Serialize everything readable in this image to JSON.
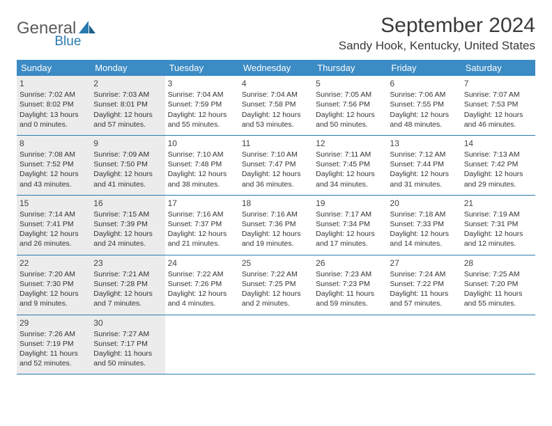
{
  "logo": {
    "general": "General",
    "blue": "Blue"
  },
  "title": "September 2024",
  "location": "Sandy Hook, Kentucky, United States",
  "colors": {
    "header_bg": "#3b8bc4",
    "header_text": "#ffffff",
    "shade_bg": "#ececec",
    "rule": "#2a7ab0",
    "logo_gray": "#5a5a5a",
    "logo_blue": "#2a7ab0"
  },
  "day_headers": [
    "Sunday",
    "Monday",
    "Tuesday",
    "Wednesday",
    "Thursday",
    "Friday",
    "Saturday"
  ],
  "weeks": [
    [
      {
        "n": "1",
        "shaded": true,
        "sr": "Sunrise: 7:02 AM",
        "ss": "Sunset: 8:02 PM",
        "dl": "Daylight: 13 hours and 0 minutes."
      },
      {
        "n": "2",
        "shaded": true,
        "sr": "Sunrise: 7:03 AM",
        "ss": "Sunset: 8:01 PM",
        "dl": "Daylight: 12 hours and 57 minutes."
      },
      {
        "n": "3",
        "shaded": false,
        "sr": "Sunrise: 7:04 AM",
        "ss": "Sunset: 7:59 PM",
        "dl": "Daylight: 12 hours and 55 minutes."
      },
      {
        "n": "4",
        "shaded": false,
        "sr": "Sunrise: 7:04 AM",
        "ss": "Sunset: 7:58 PM",
        "dl": "Daylight: 12 hours and 53 minutes."
      },
      {
        "n": "5",
        "shaded": false,
        "sr": "Sunrise: 7:05 AM",
        "ss": "Sunset: 7:56 PM",
        "dl": "Daylight: 12 hours and 50 minutes."
      },
      {
        "n": "6",
        "shaded": false,
        "sr": "Sunrise: 7:06 AM",
        "ss": "Sunset: 7:55 PM",
        "dl": "Daylight: 12 hours and 48 minutes."
      },
      {
        "n": "7",
        "shaded": false,
        "sr": "Sunrise: 7:07 AM",
        "ss": "Sunset: 7:53 PM",
        "dl": "Daylight: 12 hours and 46 minutes."
      }
    ],
    [
      {
        "n": "8",
        "shaded": true,
        "sr": "Sunrise: 7:08 AM",
        "ss": "Sunset: 7:52 PM",
        "dl": "Daylight: 12 hours and 43 minutes."
      },
      {
        "n": "9",
        "shaded": true,
        "sr": "Sunrise: 7:09 AM",
        "ss": "Sunset: 7:50 PM",
        "dl": "Daylight: 12 hours and 41 minutes."
      },
      {
        "n": "10",
        "shaded": false,
        "sr": "Sunrise: 7:10 AM",
        "ss": "Sunset: 7:48 PM",
        "dl": "Daylight: 12 hours and 38 minutes."
      },
      {
        "n": "11",
        "shaded": false,
        "sr": "Sunrise: 7:10 AM",
        "ss": "Sunset: 7:47 PM",
        "dl": "Daylight: 12 hours and 36 minutes."
      },
      {
        "n": "12",
        "shaded": false,
        "sr": "Sunrise: 7:11 AM",
        "ss": "Sunset: 7:45 PM",
        "dl": "Daylight: 12 hours and 34 minutes."
      },
      {
        "n": "13",
        "shaded": false,
        "sr": "Sunrise: 7:12 AM",
        "ss": "Sunset: 7:44 PM",
        "dl": "Daylight: 12 hours and 31 minutes."
      },
      {
        "n": "14",
        "shaded": false,
        "sr": "Sunrise: 7:13 AM",
        "ss": "Sunset: 7:42 PM",
        "dl": "Daylight: 12 hours and 29 minutes."
      }
    ],
    [
      {
        "n": "15",
        "shaded": true,
        "sr": "Sunrise: 7:14 AM",
        "ss": "Sunset: 7:41 PM",
        "dl": "Daylight: 12 hours and 26 minutes."
      },
      {
        "n": "16",
        "shaded": true,
        "sr": "Sunrise: 7:15 AM",
        "ss": "Sunset: 7:39 PM",
        "dl": "Daylight: 12 hours and 24 minutes."
      },
      {
        "n": "17",
        "shaded": false,
        "sr": "Sunrise: 7:16 AM",
        "ss": "Sunset: 7:37 PM",
        "dl": "Daylight: 12 hours and 21 minutes."
      },
      {
        "n": "18",
        "shaded": false,
        "sr": "Sunrise: 7:16 AM",
        "ss": "Sunset: 7:36 PM",
        "dl": "Daylight: 12 hours and 19 minutes."
      },
      {
        "n": "19",
        "shaded": false,
        "sr": "Sunrise: 7:17 AM",
        "ss": "Sunset: 7:34 PM",
        "dl": "Daylight: 12 hours and 17 minutes."
      },
      {
        "n": "20",
        "shaded": false,
        "sr": "Sunrise: 7:18 AM",
        "ss": "Sunset: 7:33 PM",
        "dl": "Daylight: 12 hours and 14 minutes."
      },
      {
        "n": "21",
        "shaded": false,
        "sr": "Sunrise: 7:19 AM",
        "ss": "Sunset: 7:31 PM",
        "dl": "Daylight: 12 hours and 12 minutes."
      }
    ],
    [
      {
        "n": "22",
        "shaded": true,
        "sr": "Sunrise: 7:20 AM",
        "ss": "Sunset: 7:30 PM",
        "dl": "Daylight: 12 hours and 9 minutes."
      },
      {
        "n": "23",
        "shaded": true,
        "sr": "Sunrise: 7:21 AM",
        "ss": "Sunset: 7:28 PM",
        "dl": "Daylight: 12 hours and 7 minutes."
      },
      {
        "n": "24",
        "shaded": false,
        "sr": "Sunrise: 7:22 AM",
        "ss": "Sunset: 7:26 PM",
        "dl": "Daylight: 12 hours and 4 minutes."
      },
      {
        "n": "25",
        "shaded": false,
        "sr": "Sunrise: 7:22 AM",
        "ss": "Sunset: 7:25 PM",
        "dl": "Daylight: 12 hours and 2 minutes."
      },
      {
        "n": "26",
        "shaded": false,
        "sr": "Sunrise: 7:23 AM",
        "ss": "Sunset: 7:23 PM",
        "dl": "Daylight: 11 hours and 59 minutes."
      },
      {
        "n": "27",
        "shaded": false,
        "sr": "Sunrise: 7:24 AM",
        "ss": "Sunset: 7:22 PM",
        "dl": "Daylight: 11 hours and 57 minutes."
      },
      {
        "n": "28",
        "shaded": false,
        "sr": "Sunrise: 7:25 AM",
        "ss": "Sunset: 7:20 PM",
        "dl": "Daylight: 11 hours and 55 minutes."
      }
    ],
    [
      {
        "n": "29",
        "shaded": true,
        "sr": "Sunrise: 7:26 AM",
        "ss": "Sunset: 7:19 PM",
        "dl": "Daylight: 11 hours and 52 minutes."
      },
      {
        "n": "30",
        "shaded": true,
        "sr": "Sunrise: 7:27 AM",
        "ss": "Sunset: 7:17 PM",
        "dl": "Daylight: 11 hours and 50 minutes."
      },
      {
        "n": "",
        "shaded": false,
        "sr": "",
        "ss": "",
        "dl": ""
      },
      {
        "n": "",
        "shaded": false,
        "sr": "",
        "ss": "",
        "dl": ""
      },
      {
        "n": "",
        "shaded": false,
        "sr": "",
        "ss": "",
        "dl": ""
      },
      {
        "n": "",
        "shaded": false,
        "sr": "",
        "ss": "",
        "dl": ""
      },
      {
        "n": "",
        "shaded": false,
        "sr": "",
        "ss": "",
        "dl": ""
      }
    ]
  ]
}
